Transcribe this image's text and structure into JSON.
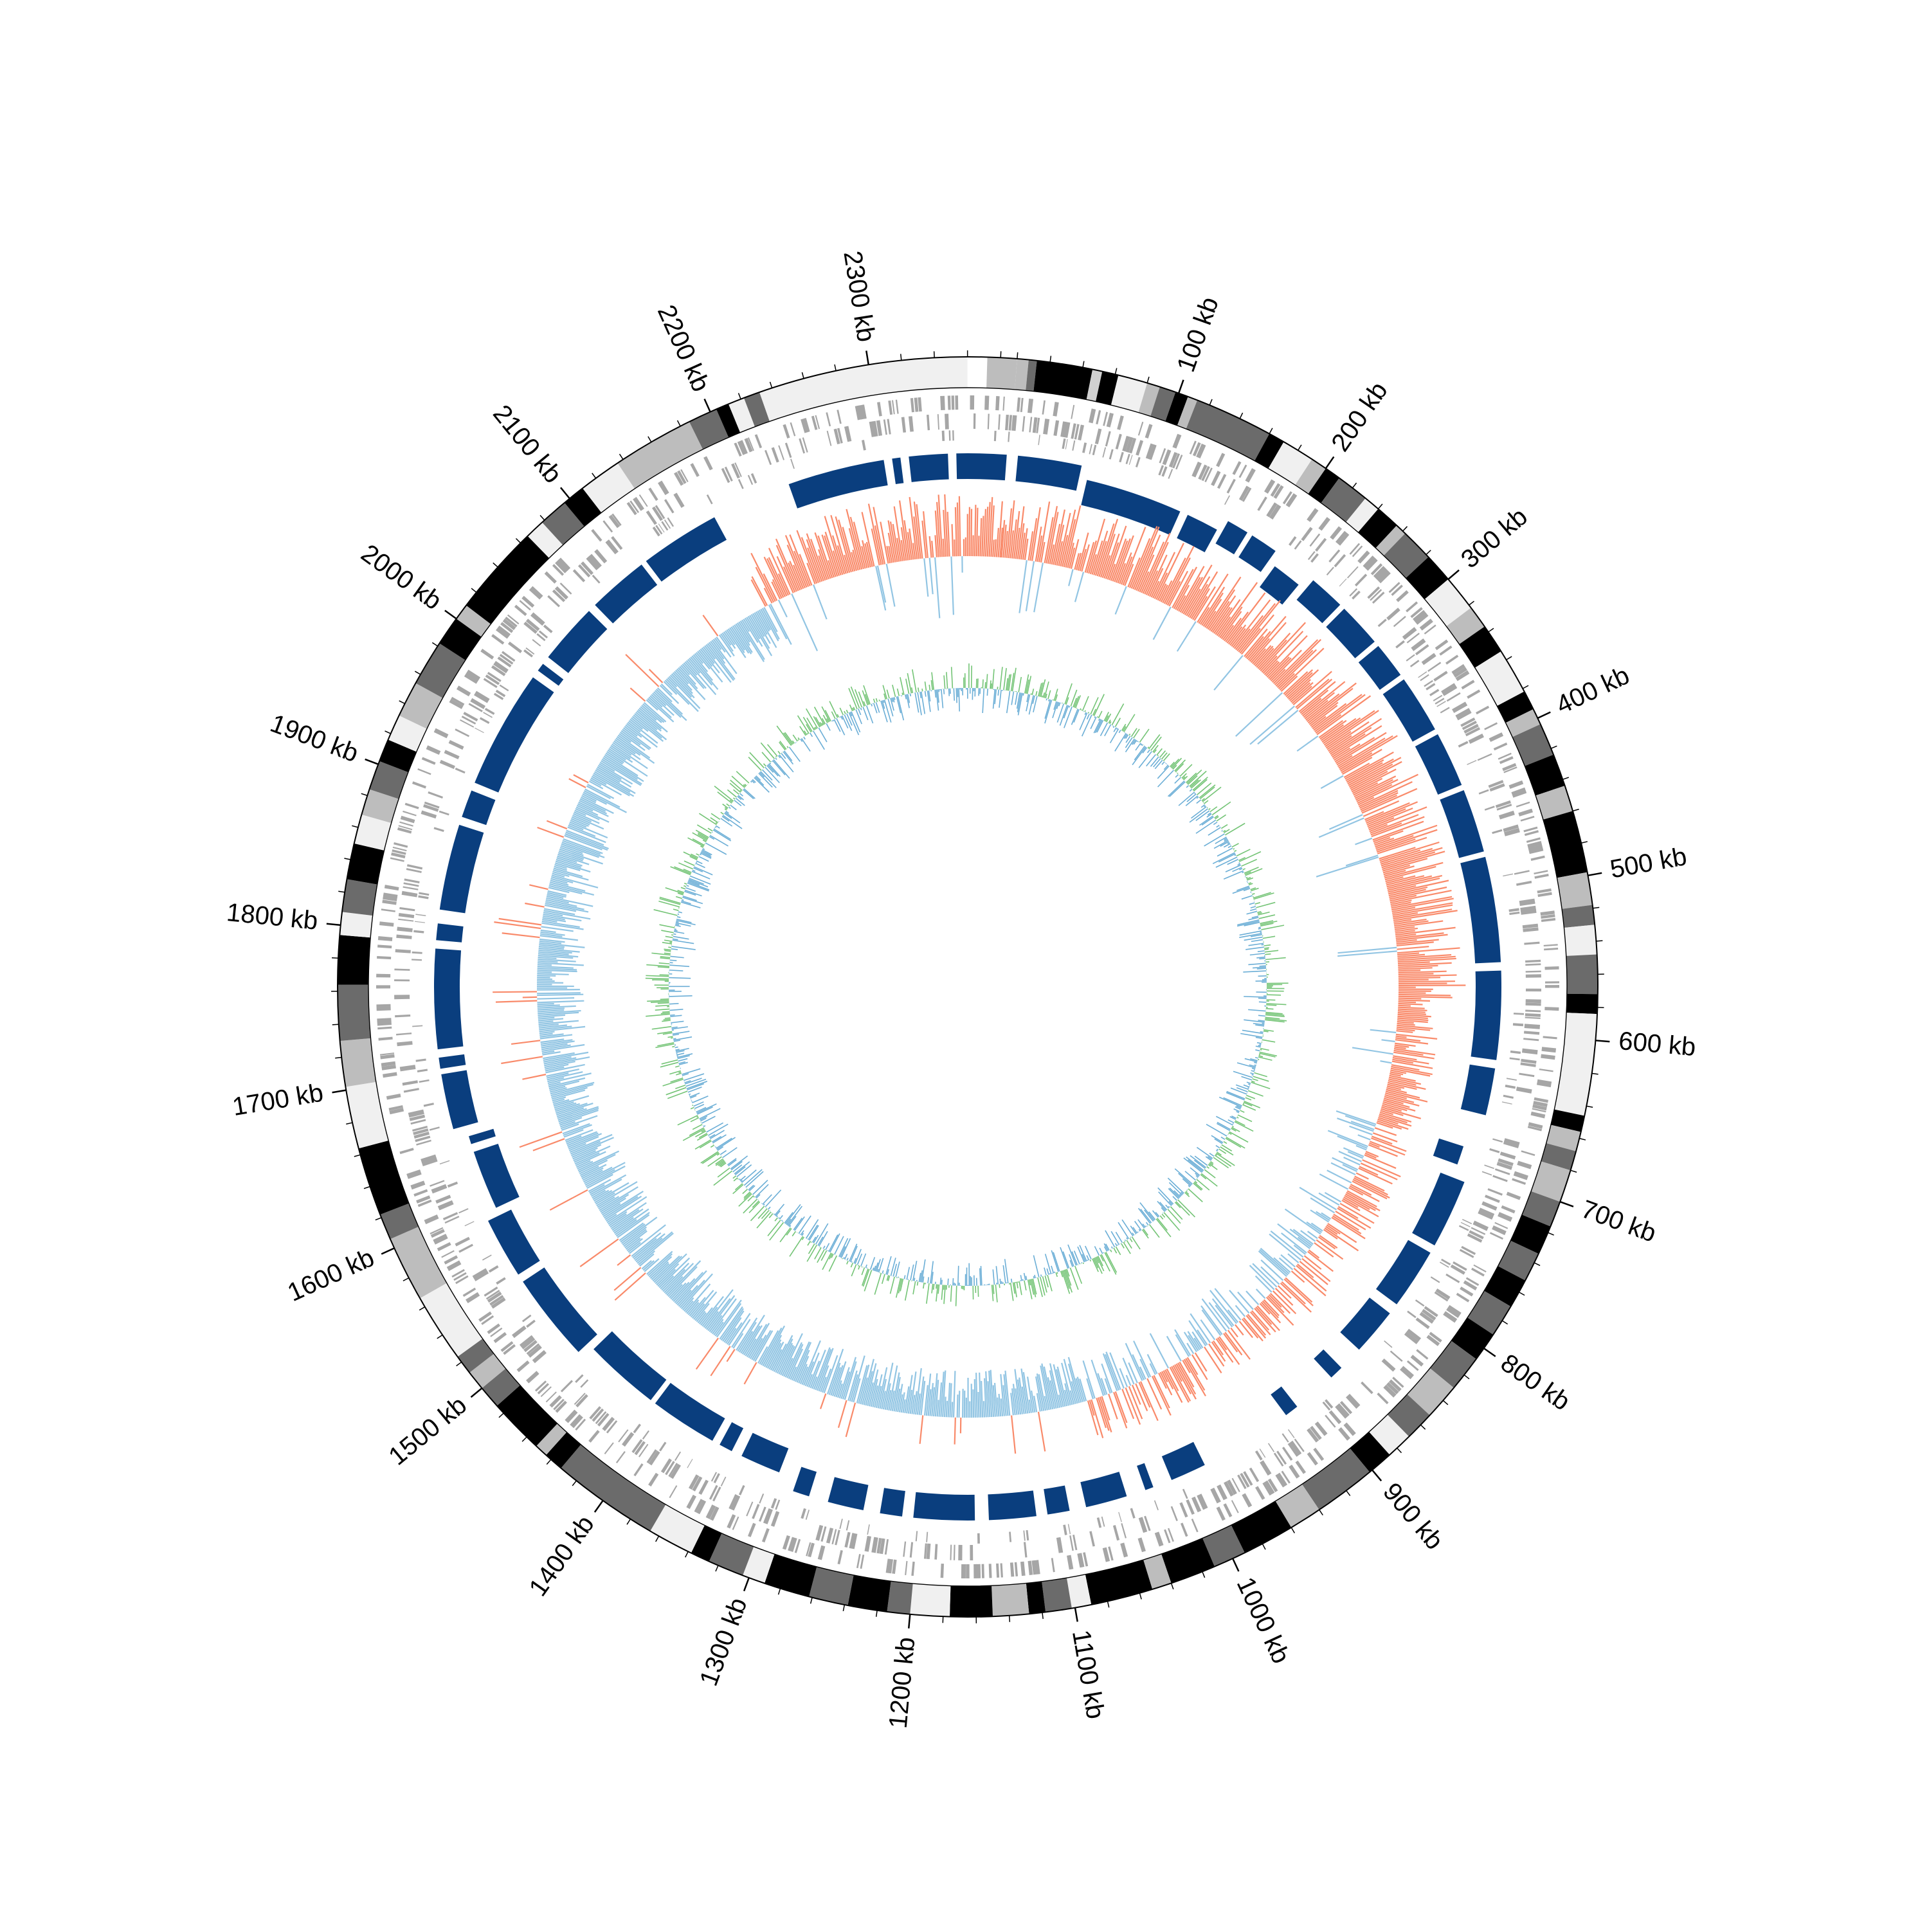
{
  "chart_data": {
    "type": "circos",
    "genome_length_kb": 2390,
    "tick_labels": [
      "100 kb",
      "200 kb",
      "300 kb",
      "400 kb",
      "500 kb",
      "600 kb",
      "700 kb",
      "800 kb",
      "900 kb",
      "1000 kb",
      "1100 kb",
      "1200 kb",
      "1300 kb",
      "1400 kb",
      "1500 kb",
      "1600 kb",
      "1700 kb",
      "1800 kb",
      "1900 kb",
      "2000 kb",
      "2100 kb",
      "2200 kb",
      "2300 kb"
    ],
    "tick_positions_kb": [
      100,
      200,
      300,
      400,
      500,
      600,
      700,
      800,
      900,
      1000,
      1100,
      1200,
      1300,
      1400,
      1500,
      1600,
      1700,
      1800,
      1900,
      2000,
      2100,
      2200,
      2300
    ],
    "minor_tick_step_kb": 20,
    "colors": {
      "cds_features": "#a6a6a6",
      "blocks": "#0a3e7e",
      "skew_positive": "#f98a6a",
      "skew_negative": "#92c5e3",
      "gc_positive": "#74c476",
      "gc_negative": "#6baed6",
      "ring_outline": "#000000",
      "tick": "#000000"
    },
    "band_ring": [
      {
        "start": 0,
        "end": 7,
        "shade": "#bdbdbd"
      },
      {
        "start": 7,
        "end": 12,
        "shade": "#6b6b6b"
      },
      {
        "start": 12,
        "end": 46,
        "shade": "#000000"
      },
      {
        "start": 46,
        "end": 52,
        "shade": "#d0d0d0"
      },
      {
        "start": 52,
        "end": 62,
        "shade": "#000000"
      },
      {
        "start": 62,
        "end": 80,
        "shade": "#f0f0f0"
      },
      {
        "start": 80,
        "end": 88,
        "shade": "#bdbdbd"
      },
      {
        "start": 88,
        "end": 98,
        "shade": "#6b6b6b"
      },
      {
        "start": 98,
        "end": 106,
        "shade": "#000000"
      },
      {
        "start": 106,
        "end": 112,
        "shade": "#bdbdbd"
      },
      {
        "start": 112,
        "end": 160,
        "shade": "#6b6b6b"
      },
      {
        "start": 160,
        "end": 170,
        "shade": "#000000"
      },
      {
        "start": 170,
        "end": 190,
        "shade": "#f0f0f0"
      },
      {
        "start": 190,
        "end": 200,
        "shade": "#bdbdbd"
      },
      {
        "start": 200,
        "end": 210,
        "shade": "#000000"
      },
      {
        "start": 210,
        "end": 230,
        "shade": "#6b6b6b"
      },
      {
        "start": 230,
        "end": 240,
        "shade": "#f0f0f0"
      },
      {
        "start": 240,
        "end": 255,
        "shade": "#000000"
      },
      {
        "start": 255,
        "end": 262,
        "shade": "#bdbdbd"
      },
      {
        "start": 262,
        "end": 282,
        "shade": "#6b6b6b"
      },
      {
        "start": 282,
        "end": 300,
        "shade": "#000000"
      },
      {
        "start": 300,
        "end": 322,
        "shade": "#f0f0f0"
      },
      {
        "start": 322,
        "end": 336,
        "shade": "#bdbdbd"
      },
      {
        "start": 336,
        "end": 354,
        "shade": "#000000"
      },
      {
        "start": 354,
        "end": 382,
        "shade": "#f0f0f0"
      },
      {
        "start": 382,
        "end": 394,
        "shade": "#000000"
      },
      {
        "start": 394,
        "end": 404,
        "shade": "#bdbdbd"
      },
      {
        "start": 404,
        "end": 424,
        "shade": "#6b6b6b"
      },
      {
        "start": 424,
        "end": 444,
        "shade": "#000000"
      },
      {
        "start": 444,
        "end": 460,
        "shade": "#bdbdbd"
      },
      {
        "start": 460,
        "end": 498,
        "shade": "#000000"
      },
      {
        "start": 498,
        "end": 518,
        "shade": "#bdbdbd"
      },
      {
        "start": 518,
        "end": 530,
        "shade": "#6b6b6b"
      },
      {
        "start": 530,
        "end": 548,
        "shade": "#f0f0f0"
      },
      {
        "start": 548,
        "end": 572,
        "shade": "#6b6b6b"
      },
      {
        "start": 572,
        "end": 584,
        "shade": "#000000"
      },
      {
        "start": 584,
        "end": 646,
        "shade": "#f0f0f0"
      },
      {
        "start": 646,
        "end": 656,
        "shade": "#000000"
      },
      {
        "start": 656,
        "end": 668,
        "shade": "#bdbdbd"
      },
      {
        "start": 668,
        "end": 680,
        "shade": "#6b6b6b"
      },
      {
        "start": 680,
        "end": 700,
        "shade": "#bdbdbd"
      },
      {
        "start": 700,
        "end": 716,
        "shade": "#6b6b6b"
      },
      {
        "start": 716,
        "end": 734,
        "shade": "#000000"
      },
      {
        "start": 734,
        "end": 752,
        "shade": "#6b6b6b"
      },
      {
        "start": 752,
        "end": 770,
        "shade": "#000000"
      },
      {
        "start": 770,
        "end": 790,
        "shade": "#6b6b6b"
      },
      {
        "start": 790,
        "end": 808,
        "shade": "#000000"
      },
      {
        "start": 808,
        "end": 830,
        "shade": "#6b6b6b"
      },
      {
        "start": 830,
        "end": 852,
        "shade": "#bdbdbd"
      },
      {
        "start": 852,
        "end": 870,
        "shade": "#6b6b6b"
      },
      {
        "start": 870,
        "end": 886,
        "shade": "#f0f0f0"
      },
      {
        "start": 886,
        "end": 902,
        "shade": "#000000"
      },
      {
        "start": 902,
        "end": 940,
        "shade": "#6b6b6b"
      },
      {
        "start": 940,
        "end": 960,
        "shade": "#bdbdbd"
      },
      {
        "start": 960,
        "end": 992,
        "shade": "#000000"
      },
      {
        "start": 992,
        "end": 1012,
        "shade": "#6b6b6b"
      },
      {
        "start": 1012,
        "end": 1040,
        "shade": "#000000"
      },
      {
        "start": 1040,
        "end": 1052,
        "shade": "#bdbdbd"
      },
      {
        "start": 1052,
        "end": 1090,
        "shade": "#000000"
      },
      {
        "start": 1090,
        "end": 1102,
        "shade": "#f0f0f0"
      },
      {
        "start": 1102,
        "end": 1118,
        "shade": "#6b6b6b"
      },
      {
        "start": 1118,
        "end": 1128,
        "shade": "#000000"
      },
      {
        "start": 1128,
        "end": 1150,
        "shade": "#bdbdbd"
      },
      {
        "start": 1150,
        "end": 1176,
        "shade": "#000000"
      },
      {
        "start": 1176,
        "end": 1200,
        "shade": "#f0f0f0"
      },
      {
        "start": 1200,
        "end": 1214,
        "shade": "#6b6b6b"
      },
      {
        "start": 1214,
        "end": 1238,
        "shade": "#000000"
      },
      {
        "start": 1238,
        "end": 1262,
        "shade": "#6b6b6b"
      },
      {
        "start": 1262,
        "end": 1290,
        "shade": "#000000"
      },
      {
        "start": 1290,
        "end": 1304,
        "shade": "#f0f0f0"
      },
      {
        "start": 1304,
        "end": 1326,
        "shade": "#6b6b6b"
      },
      {
        "start": 1326,
        "end": 1338,
        "shade": "#000000"
      },
      {
        "start": 1338,
        "end": 1366,
        "shade": "#f0f0f0"
      },
      {
        "start": 1366,
        "end": 1432,
        "shade": "#6b6b6b"
      },
      {
        "start": 1432,
        "end": 1444,
        "shade": "#000000"
      },
      {
        "start": 1444,
        "end": 1452,
        "shade": "#bdbdbd"
      },
      {
        "start": 1452,
        "end": 1486,
        "shade": "#000000"
      },
      {
        "start": 1486,
        "end": 1500,
        "shade": "#6b6b6b"
      },
      {
        "start": 1500,
        "end": 1512,
        "shade": "#bdbdbd"
      },
      {
        "start": 1512,
        "end": 1524,
        "shade": "#6b6b6b"
      },
      {
        "start": 1524,
        "end": 1566,
        "shade": "#f0f0f0"
      },
      {
        "start": 1566,
        "end": 1606,
        "shade": "#bdbdbd"
      },
      {
        "start": 1606,
        "end": 1622,
        "shade": "#6b6b6b"
      },
      {
        "start": 1622,
        "end": 1664,
        "shade": "#000000"
      },
      {
        "start": 1664,
        "end": 1702,
        "shade": "#f0f0f0"
      },
      {
        "start": 1702,
        "end": 1730,
        "shade": "#bdbdbd"
      },
      {
        "start": 1730,
        "end": 1764,
        "shade": "#6b6b6b"
      },
      {
        "start": 1764,
        "end": 1794,
        "shade": "#000000"
      },
      {
        "start": 1794,
        "end": 1808,
        "shade": "#f0f0f0"
      },
      {
        "start": 1808,
        "end": 1828,
        "shade": "#6b6b6b"
      },
      {
        "start": 1828,
        "end": 1850,
        "shade": "#000000"
      },
      {
        "start": 1850,
        "end": 1868,
        "shade": "#f0f0f0"
      },
      {
        "start": 1868,
        "end": 1884,
        "shade": "#bdbdbd"
      },
      {
        "start": 1884,
        "end": 1902,
        "shade": "#6b6b6b"
      },
      {
        "start": 1902,
        "end": 1916,
        "shade": "#000000"
      },
      {
        "start": 1916,
        "end": 1932,
        "shade": "#f0f0f0"
      },
      {
        "start": 1932,
        "end": 1954,
        "shade": "#bdbdbd"
      },
      {
        "start": 1954,
        "end": 1982,
        "shade": "#6b6b6b"
      },
      {
        "start": 1982,
        "end": 2000,
        "shade": "#000000"
      },
      {
        "start": 2000,
        "end": 2010,
        "shade": "#bdbdbd"
      },
      {
        "start": 2010,
        "end": 2066,
        "shade": "#000000"
      },
      {
        "start": 2066,
        "end": 2078,
        "shade": "#f0f0f0"
      },
      {
        "start": 2078,
        "end": 2096,
        "shade": "#6b6b6b"
      },
      {
        "start": 2096,
        "end": 2110,
        "shade": "#000000"
      },
      {
        "start": 2110,
        "end": 2136,
        "shade": "#f0f0f0"
      },
      {
        "start": 2136,
        "end": 2186,
        "shade": "#bdbdbd"
      },
      {
        "start": 2186,
        "end": 2204,
        "shade": "#6b6b6b"
      },
      {
        "start": 2204,
        "end": 2212,
        "shade": "#000000"
      },
      {
        "start": 2212,
        "end": 2222,
        "shade": "#f0f0f0"
      },
      {
        "start": 2222,
        "end": 2232,
        "shade": "#6b6b6b"
      },
      {
        "start": 2232,
        "end": 2360,
        "shade": "#f0f0f0"
      },
      {
        "start": 2360,
        "end": 2372,
        "shade": "#ffffff"
      },
      {
        "start": 2372,
        "end": 2390,
        "shade": "#bdbdbd"
      }
    ],
    "block_ring": [
      {
        "start": 6,
        "end": 52,
        "row": "outer"
      },
      {
        "start": 58,
        "end": 130,
        "row": "inner"
      },
      {
        "start": 136,
        "end": 160,
        "row": "inner"
      },
      {
        "start": 164,
        "end": 180,
        "row": "outer"
      },
      {
        "start": 184,
        "end": 204,
        "row": "outer"
      },
      {
        "start": 210,
        "end": 232,
        "row": "inner"
      },
      {
        "start": 238,
        "end": 264,
        "row": "outer"
      },
      {
        "start": 268,
        "end": 300,
        "row": "outer"
      },
      {
        "start": 304,
        "end": 330,
        "row": "outer"
      },
      {
        "start": 334,
        "end": 376,
        "row": "outer"
      },
      {
        "start": 380,
        "end": 420,
        "row": "outer"
      },
      {
        "start": 424,
        "end": 470,
        "row": "outer"
      },
      {
        "start": 474,
        "end": 550,
        "row": "outer"
      },
      {
        "start": 556,
        "end": 620,
        "row": "outer"
      },
      {
        "start": 626,
        "end": 660,
        "row": "outer"
      },
      {
        "start": 686,
        "end": 700,
        "row": "inner"
      },
      {
        "start": 710,
        "end": 760,
        "row": "outer"
      },
      {
        "start": 766,
        "end": 810,
        "row": "outer"
      },
      {
        "start": 818,
        "end": 852,
        "row": "outer"
      },
      {
        "start": 870,
        "end": 880,
        "row": "outer"
      },
      {
        "start": 912,
        "end": 922,
        "row": "outer"
      },
      {
        "start": 990,
        "end": 1016,
        "row": "outer"
      },
      {
        "start": 1030,
        "end": 1036,
        "row": "outer"
      },
      {
        "start": 1050,
        "end": 1080,
        "row": "outer"
      },
      {
        "start": 1092,
        "end": 1108,
        "row": "outer"
      },
      {
        "start": 1116,
        "end": 1150,
        "row": "outer"
      },
      {
        "start": 1160,
        "end": 1204,
        "row": "outer"
      },
      {
        "start": 1212,
        "end": 1228,
        "row": "outer"
      },
      {
        "start": 1240,
        "end": 1266,
        "row": "outer"
      },
      {
        "start": 1280,
        "end": 1292,
        "row": "outer"
      },
      {
        "start": 1306,
        "end": 1336,
        "row": "inner"
      },
      {
        "start": 1344,
        "end": 1354,
        "row": "inner"
      },
      {
        "start": 1360,
        "end": 1410,
        "row": "inner"
      },
      {
        "start": 1414,
        "end": 1470,
        "row": "inner"
      },
      {
        "start": 1476,
        "end": 1540,
        "row": "outer"
      },
      {
        "start": 1546,
        "end": 1590,
        "row": "outer"
      },
      {
        "start": 1596,
        "end": 1640,
        "row": "inner"
      },
      {
        "start": 1646,
        "end": 1652,
        "row": "inner"
      },
      {
        "start": 1660,
        "end": 1700,
        "row": "outer"
      },
      {
        "start": 1704,
        "end": 1712,
        "row": "outer"
      },
      {
        "start": 1718,
        "end": 1790,
        "row": "outer"
      },
      {
        "start": 1796,
        "end": 1808,
        "row": "outer"
      },
      {
        "start": 1818,
        "end": 1880,
        "row": "outer"
      },
      {
        "start": 1886,
        "end": 1906,
        "row": "outer"
      },
      {
        "start": 1912,
        "end": 1998,
        "row": "outer"
      },
      {
        "start": 2004,
        "end": 2010,
        "row": "outer"
      },
      {
        "start": 2016,
        "end": 2060,
        "row": "outer"
      },
      {
        "start": 2066,
        "end": 2110,
        "row": "outer"
      },
      {
        "start": 2114,
        "end": 2172,
        "row": "outer"
      },
      {
        "start": 2230,
        "end": 2300,
        "row": "outer"
      },
      {
        "start": 2306,
        "end": 2312,
        "row": "outer"
      },
      {
        "start": 2318,
        "end": 2346,
        "row": "outer"
      },
      {
        "start": 2352,
        "end": 2388,
        "row": "outer"
      }
    ],
    "gc_skew_regions": [
      {
        "start": 0,
        "end": 580,
        "sign": "positive",
        "level": 0.7
      },
      {
        "start": 580,
        "end": 690,
        "sign": "positive",
        "level": 0.45
      },
      {
        "start": 690,
        "end": 1060,
        "sign": "mixed",
        "level": 0.45
      },
      {
        "start": 1060,
        "end": 2180,
        "sign": "negative",
        "level": 0.5
      },
      {
        "start": 2180,
        "end": 2390,
        "sign": "positive",
        "level": 0.65
      }
    ],
    "gc_content_level": 0.35,
    "grid": false,
    "legend": "none"
  }
}
